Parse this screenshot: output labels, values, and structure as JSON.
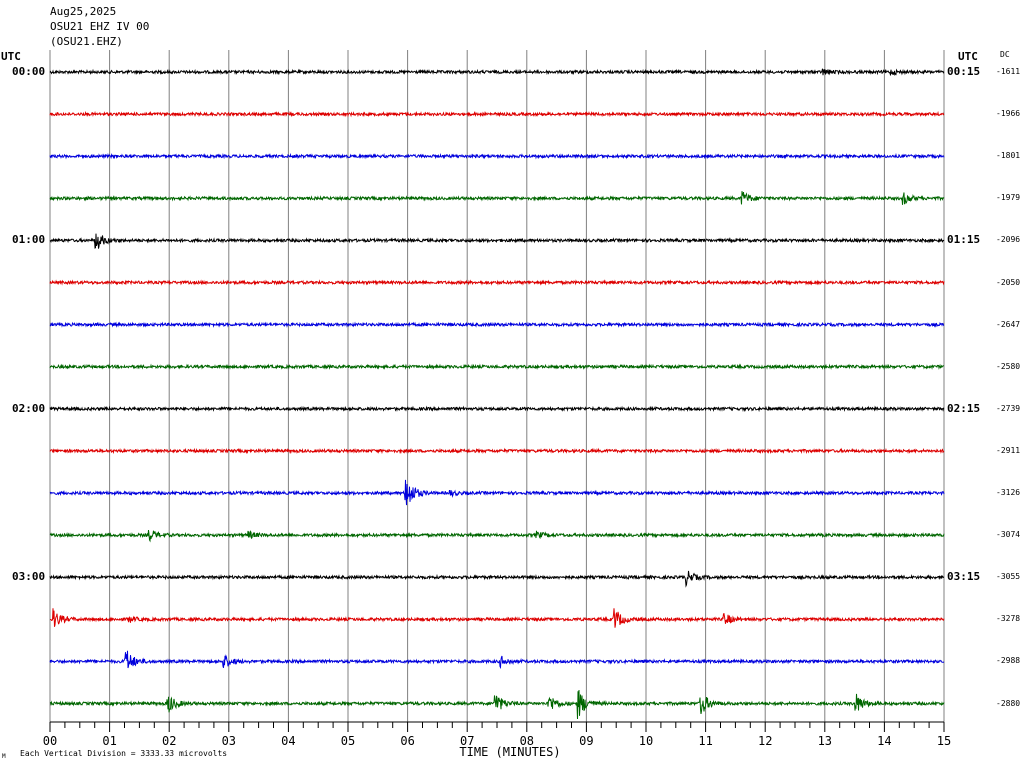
{
  "header": {
    "date": "Aug25,2025",
    "station_line": "OSU21 EHZ IV 00",
    "channel_line": "(OSU21.EHZ)"
  },
  "left_axis": {
    "utc_label": "UTC"
  },
  "right_axis": {
    "utc_label": "UTC",
    "dc_label": "DC"
  },
  "footer": {
    "mark": "M",
    "vertical_division": "Each Vertical Division = 3333.33 microvolts"
  },
  "colors": {
    "trace_cycle": [
      "#000000",
      "#dd0000",
      "#0000dd",
      "#006600"
    ],
    "grid": "#808080"
  },
  "chart_data": {
    "type": "line",
    "title": "",
    "xlabel": "TIME (MINUTES)",
    "ylabel": "",
    "xlim": [
      0,
      15
    ],
    "x_ticks": [
      "00",
      "01",
      "02",
      "03",
      "04",
      "05",
      "06",
      "07",
      "08",
      "09",
      "10",
      "11",
      "12",
      "13",
      "14",
      "15"
    ],
    "grid": true,
    "rows": [
      {
        "left": "00:00",
        "right": "00:15",
        "dc": "-1611",
        "color": "black"
      },
      {
        "left": "",
        "right": "",
        "dc": "-1966",
        "color": "red"
      },
      {
        "left": "",
        "right": "",
        "dc": "-1801",
        "color": "blue"
      },
      {
        "left": "",
        "right": "",
        "dc": "-1979",
        "color": "green"
      },
      {
        "left": "01:00",
        "right": "01:15",
        "dc": "-2096",
        "color": "black"
      },
      {
        "left": "",
        "right": "",
        "dc": "-2050",
        "color": "red"
      },
      {
        "left": "",
        "right": "",
        "dc": "-2647",
        "color": "blue"
      },
      {
        "left": "",
        "right": "",
        "dc": "-2580",
        "color": "green"
      },
      {
        "left": "02:00",
        "right": "02:15",
        "dc": "-2739",
        "color": "black"
      },
      {
        "left": "",
        "right": "",
        "dc": "-2911",
        "color": "red"
      },
      {
        "left": "",
        "right": "",
        "dc": "-3126",
        "color": "blue"
      },
      {
        "left": "",
        "right": "",
        "dc": "-3074",
        "color": "green"
      },
      {
        "left": "03:00",
        "right": "03:15",
        "dc": "-3055",
        "color": "black"
      },
      {
        "left": "",
        "right": "",
        "dc": "-3278",
        "color": "red"
      },
      {
        "left": "",
        "right": "",
        "dc": "-2988",
        "color": "blue"
      },
      {
        "left": "",
        "right": "",
        "dc": "-2880",
        "color": "green"
      }
    ],
    "events": [
      {
        "row": 0,
        "minute": 12.95,
        "amplitude": 0.15
      },
      {
        "row": 0,
        "minute": 14.1,
        "amplitude": 0.12
      },
      {
        "row": 3,
        "minute": 11.6,
        "amplitude": 0.35
      },
      {
        "row": 3,
        "minute": 14.3,
        "amplitude": 0.3
      },
      {
        "row": 4,
        "minute": 0.75,
        "amplitude": 0.55
      },
      {
        "row": 10,
        "minute": 5.95,
        "amplitude": 1.0
      },
      {
        "row": 10,
        "minute": 6.7,
        "amplitude": 0.12
      },
      {
        "row": 11,
        "minute": 1.65,
        "amplitude": 0.3
      },
      {
        "row": 11,
        "minute": 3.3,
        "amplitude": 0.2
      },
      {
        "row": 11,
        "minute": 8.15,
        "amplitude": 0.15
      },
      {
        "row": 12,
        "minute": 10.65,
        "amplitude": 0.4
      },
      {
        "row": 13,
        "minute": 0.05,
        "amplitude": 0.45
      },
      {
        "row": 13,
        "minute": 1.3,
        "amplitude": 0.15
      },
      {
        "row": 13,
        "minute": 9.45,
        "amplitude": 0.6
      },
      {
        "row": 13,
        "minute": 11.3,
        "amplitude": 0.3
      },
      {
        "row": 14,
        "minute": 1.25,
        "amplitude": 0.7
      },
      {
        "row": 14,
        "minute": 2.9,
        "amplitude": 0.35
      },
      {
        "row": 14,
        "minute": 7.55,
        "amplitude": 0.25
      },
      {
        "row": 15,
        "minute": 1.95,
        "amplitude": 0.55
      },
      {
        "row": 15,
        "minute": 7.45,
        "amplitude": 0.6
      },
      {
        "row": 15,
        "minute": 8.35,
        "amplitude": 0.5
      },
      {
        "row": 15,
        "minute": 8.85,
        "amplitude": 0.75
      },
      {
        "row": 15,
        "minute": 10.9,
        "amplitude": 0.65
      },
      {
        "row": 15,
        "minute": 13.5,
        "amplitude": 0.55
      }
    ]
  }
}
